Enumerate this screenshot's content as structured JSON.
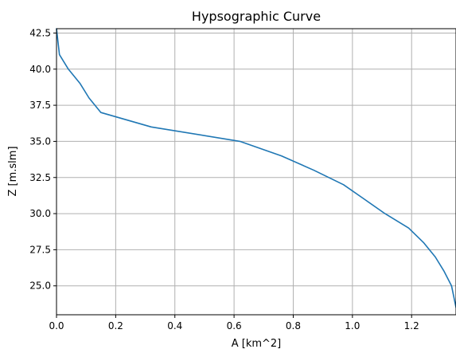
{
  "chart_data": {
    "type": "line",
    "title": "Hypsographic Curve",
    "xlabel": "A [km^2]",
    "ylabel": "Z [m.slm]",
    "xlim": [
      0.0,
      1.35
    ],
    "ylim": [
      23.0,
      42.8
    ],
    "grid": true,
    "xticks": [
      0.0,
      0.2,
      0.4,
      0.6,
      0.8,
      1.0,
      1.2
    ],
    "xtick_labels": [
      "0.0",
      "0.2",
      "0.4",
      "0.6",
      "0.8",
      "1.0",
      "1.2"
    ],
    "yticks": [
      25.0,
      27.5,
      30.0,
      32.5,
      35.0,
      37.5,
      40.0,
      42.5
    ],
    "ytick_labels": [
      "25.0",
      "27.5",
      "30.0",
      "32.5",
      "35.0",
      "37.5",
      "40.0",
      "42.5"
    ],
    "series": [
      {
        "color": "#1f77b4",
        "x": [
          0.0,
          0.01,
          0.04,
          0.08,
          0.11,
          0.15,
          0.32,
          0.62,
          0.76,
          0.87,
          0.97,
          1.04,
          1.11,
          1.19,
          1.24,
          1.28,
          1.31,
          1.335,
          1.35
        ],
        "y": [
          42.8,
          41.0,
          40.0,
          39.0,
          38.0,
          37.0,
          36.0,
          35.0,
          34.0,
          33.0,
          32.0,
          31.0,
          30.0,
          29.0,
          28.0,
          27.0,
          26.0,
          25.0,
          23.5
        ]
      }
    ]
  }
}
